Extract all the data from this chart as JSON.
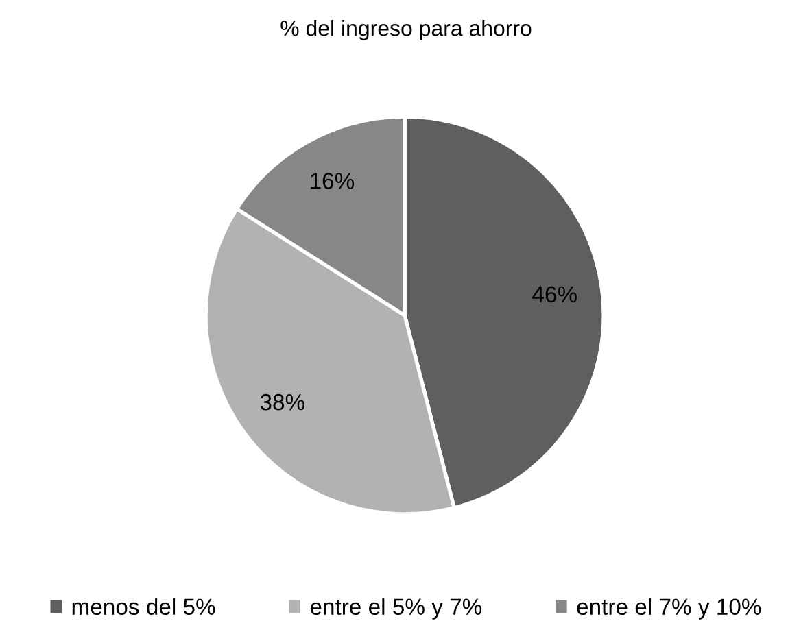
{
  "chart_data": {
    "type": "pie",
    "title": "% del ingreso para ahorro",
    "categories": [
      "menos del 5%",
      "entre el 5% y 7%",
      "entre el 7% y 10%"
    ],
    "values": [
      46,
      38,
      16
    ],
    "colors": [
      "#5f5f5f",
      "#b2b2b2",
      "#878787"
    ],
    "value_labels": [
      "46%",
      "38%",
      "16%"
    ],
    "legend": "bottom"
  }
}
